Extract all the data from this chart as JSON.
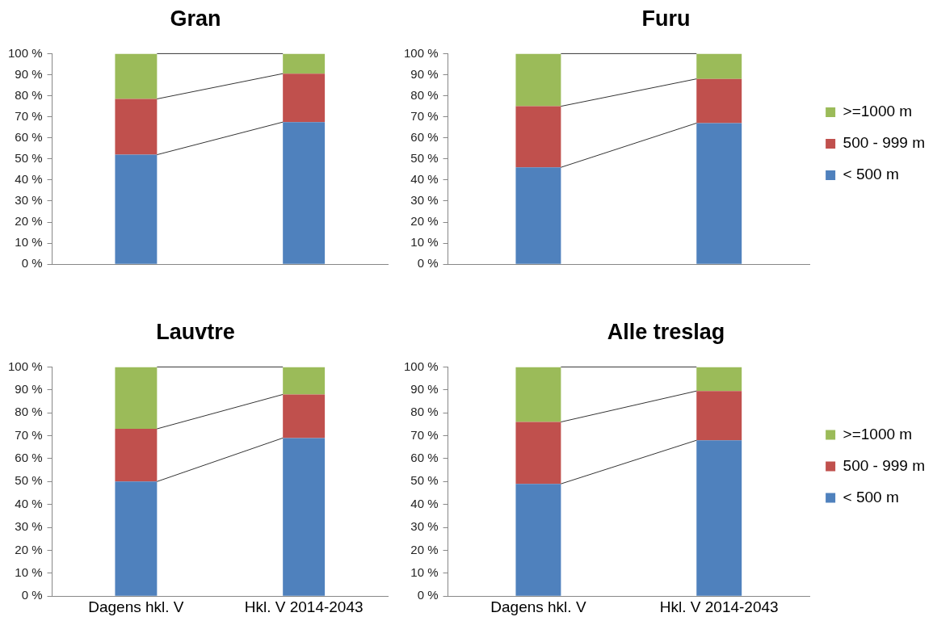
{
  "chart_data": [
    {
      "type": "bar",
      "title": "Gran",
      "stacked": true,
      "categories": [
        null,
        null
      ],
      "series": [
        {
          "color": "#4f81bd",
          "values": [
            52,
            67.5
          ]
        },
        {
          "color": "#c0504d",
          "values": [
            26.5,
            23
          ]
        },
        {
          "color": "#9bbb59",
          "values": [
            21.5,
            9.5
          ]
        }
      ],
      "ylim": [
        0,
        100
      ],
      "yticks": [
        {
          "value": 0,
          "label": "0 %"
        },
        {
          "value": 10,
          "label": "10 %"
        },
        {
          "value": 20,
          "label": "20 %"
        },
        {
          "value": 30,
          "label": "30 %"
        },
        {
          "value": 40,
          "label": "40 %"
        },
        {
          "value": 50,
          "label": "50 %"
        },
        {
          "value": 60,
          "label": "60 %"
        },
        {
          "value": 70,
          "label": "70 %"
        },
        {
          "value": 80,
          "label": "80 %"
        },
        {
          "value": 90,
          "label": "90 %"
        },
        {
          "value": 100,
          "label": "100 %"
        }
      ],
      "grid": false,
      "legend": false
    },
    {
      "type": "bar",
      "title": "Furu",
      "stacked": true,
      "categories": [
        null,
        null
      ],
      "series": [
        {
          "name": "< 500 m",
          "color": "#4f81bd",
          "values": [
            46,
            67
          ]
        },
        {
          "name": "500 - 999 m",
          "color": "#c0504d",
          "values": [
            29,
            21
          ]
        },
        {
          "name": ">=1000 m",
          "color": "#9bbb59",
          "values": [
            25,
            12
          ]
        }
      ],
      "ylim": [
        0,
        100
      ],
      "yticks": [
        {
          "value": 0,
          "label": "0 %"
        },
        {
          "value": 10,
          "label": "10 %"
        },
        {
          "value": 20,
          "label": "20 %"
        },
        {
          "value": 30,
          "label": "30 %"
        },
        {
          "value": 40,
          "label": "40 %"
        },
        {
          "value": 50,
          "label": "50 %"
        },
        {
          "value": 60,
          "label": "60 %"
        },
        {
          "value": 70,
          "label": "70 %"
        },
        {
          "value": 80,
          "label": "80 %"
        },
        {
          "value": 90,
          "label": "90 %"
        },
        {
          "value": 100,
          "label": "100 %"
        }
      ],
      "grid": false,
      "legend": "right"
    },
    {
      "type": "bar",
      "title": "Lauvtre",
      "stacked": true,
      "categories": [
        "Dagens hkl. V",
        "Hkl. V 2014-2043"
      ],
      "series": [
        {
          "color": "#4f81bd",
          "values": [
            50,
            69
          ]
        },
        {
          "color": "#c0504d",
          "values": [
            23,
            19
          ]
        },
        {
          "color": "#9bbb59",
          "values": [
            27,
            12
          ]
        }
      ],
      "ylim": [
        0,
        100
      ],
      "yticks": [
        {
          "value": 0,
          "label": "0 %"
        },
        {
          "value": 10,
          "label": "10 %"
        },
        {
          "value": 20,
          "label": "20 %"
        },
        {
          "value": 30,
          "label": "30 %"
        },
        {
          "value": 40,
          "label": "40 %"
        },
        {
          "value": 50,
          "label": "50 %"
        },
        {
          "value": 60,
          "label": "60 %"
        },
        {
          "value": 70,
          "label": "70 %"
        },
        {
          "value": 80,
          "label": "80 %"
        },
        {
          "value": 90,
          "label": "90 %"
        },
        {
          "value": 100,
          "label": "100 %"
        }
      ],
      "grid": false,
      "legend": false
    },
    {
      "type": "bar",
      "title": "Alle treslag",
      "stacked": true,
      "categories": [
        "Dagens hkl. V",
        "Hkl. V 2014-2043"
      ],
      "series": [
        {
          "name": "< 500 m",
          "color": "#4f81bd",
          "values": [
            49,
            68
          ]
        },
        {
          "name": "500 - 999 m",
          "color": "#c0504d",
          "values": [
            27,
            21.5
          ]
        },
        {
          "name": ">=1000 m",
          "color": "#9bbb59",
          "values": [
            24,
            10.5
          ]
        }
      ],
      "ylim": [
        0,
        100
      ],
      "yticks": [
        {
          "value": 0,
          "label": "0 %"
        },
        {
          "value": 10,
          "label": "10 %"
        },
        {
          "value": 20,
          "label": "20 %"
        },
        {
          "value": 30,
          "label": "30 %"
        },
        {
          "value": 40,
          "label": "40 %"
        },
        {
          "value": 50,
          "label": "50 %"
        },
        {
          "value": 60,
          "label": "60 %"
        },
        {
          "value": 70,
          "label": "70 %"
        },
        {
          "value": 80,
          "label": "80 %"
        },
        {
          "value": 90,
          "label": "90 %"
        },
        {
          "value": 100,
          "label": "100 %"
        }
      ],
      "grid": false,
      "legend": "right"
    }
  ]
}
